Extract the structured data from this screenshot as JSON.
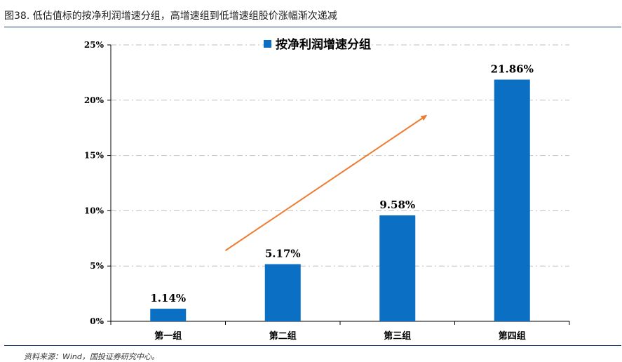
{
  "caption": "图38. 低估值标的按净利润增速分组，高增速组到低增速组股价涨幅渐次递减",
  "source": "资料来源：Wind，国投证券研究中心。",
  "chart_data": {
    "type": "bar",
    "categories": [
      "第一组",
      "第二组",
      "第三组",
      "第四组"
    ],
    "series": [
      {
        "name": "按净利润增速分组",
        "values": [
          1.14,
          5.17,
          9.58,
          21.86
        ],
        "color": "#0b6fc4"
      }
    ],
    "data_labels": [
      "1.14%",
      "5.17%",
      "9.58%",
      "21.86%"
    ],
    "ylim": [
      0,
      25
    ],
    "yticks": [
      "0%",
      "5%",
      "10%",
      "15%",
      "20%",
      "25%"
    ],
    "ytick_values": [
      0,
      5,
      10,
      15,
      20,
      25
    ],
    "grid": true,
    "legend": "top-center",
    "annotation": {
      "type": "arrow",
      "color": "#ed7d31",
      "from": [
        1.5,
        6.4
      ],
      "to": [
        2.75,
        18.6
      ]
    }
  }
}
